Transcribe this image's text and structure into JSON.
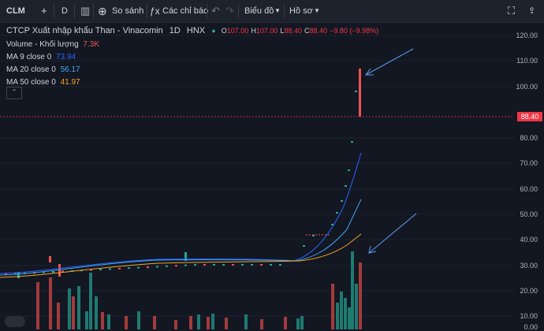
{
  "toolbar": {
    "symbol": "CLM",
    "interval": "D",
    "compare_label": "So sánh",
    "indicators_label": "Các chỉ báo",
    "chart_type_label": "Biểu đồ",
    "profile_label": "Hồ sơ"
  },
  "legend": {
    "title": "CTCP Xuất nhập khẩu Than - Vinacomin",
    "interval": "1D",
    "exchange": "HNX",
    "o_label": "O",
    "o": "107.00",
    "h_label": "H",
    "h": "107.00",
    "l_label": "L",
    "l": "88.40",
    "c_label": "C",
    "c": "88.40",
    "change": "−9.80 (−9.98%)",
    "volume_label": "Volume - Khối lượng",
    "volume_value": "7.3K",
    "ma9_label": "MA 9 close 0",
    "ma9_value": "73.94",
    "ma20_label": "MA 20 close 0",
    "ma20_value": "56.17",
    "ma50_label": "MA 50 close 0",
    "ma50_value": "41.97"
  },
  "price_axis": [
    "120.00",
    "110.00",
    "100.00",
    "80.00",
    "70.00",
    "60.00",
    "50.00",
    "40.00",
    "30.00",
    "20.00",
    "10.00",
    "0.00"
  ],
  "last_price": "88.40",
  "colors": {
    "up": "#26a69a",
    "down": "#ef5350",
    "ma9": "#2962ff",
    "ma20": "#42a5f5",
    "ma50": "#f5a623",
    "background": "#131722"
  }
}
